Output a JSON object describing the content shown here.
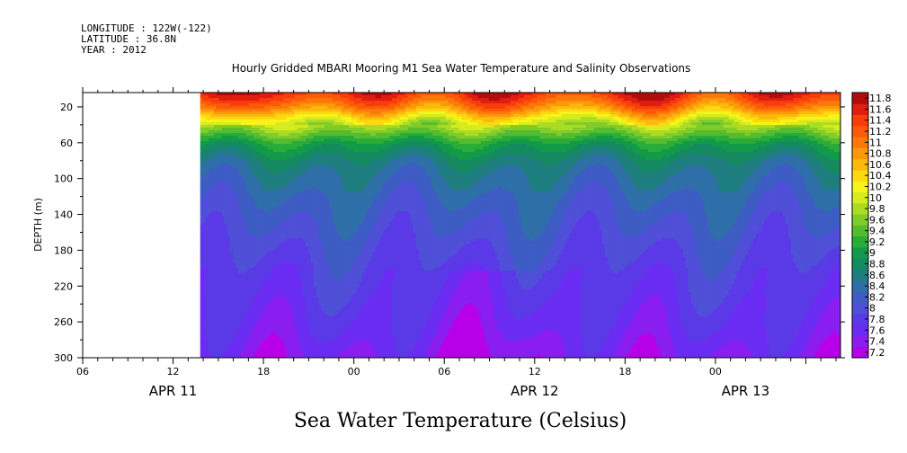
{
  "header": {
    "longitude": "LONGITUDE : 122W(-122)",
    "latitude": "LATITUDE : 36.8N",
    "year": "YEAR : 2012",
    "title": "Hourly Gridded MBARI Mooring M1 Sea Water Temperature and Salinity Observations"
  },
  "footer": {
    "variable_label": "Sea Water Temperature (Celsius)"
  },
  "chart_data": {
    "type": "heatmap",
    "title": "Hourly Gridded MBARI Mooring M1 Sea Water Temperature and Salinity Observations",
    "ylabel": "DEPTH (m)",
    "xlabel": "",
    "xlim_hours": [
      0,
      50.3
    ],
    "ylim": [
      300,
      0
    ],
    "data_start_hour": 7.8,
    "y_ticks": [
      20,
      60,
      100,
      140,
      180,
      220,
      260,
      300
    ],
    "x_tick_labels": [
      {
        "hour": 0,
        "label": "06"
      },
      {
        "hour": 6,
        "label": "12"
      },
      {
        "hour": 12,
        "label": "18"
      },
      {
        "hour": 18,
        "label": "00"
      },
      {
        "hour": 24,
        "label": "06"
      },
      {
        "hour": 30,
        "label": "12"
      },
      {
        "hour": 36,
        "label": "18"
      },
      {
        "hour": 42,
        "label": "00"
      }
    ],
    "date_labels": [
      {
        "hour": 6,
        "label": "APR 11"
      },
      {
        "hour": 30,
        "label": "APR 12"
      },
      {
        "hour": 44,
        "label": "APR 13"
      }
    ],
    "colorbar_levels": [
      7.2,
      7.4,
      7.6,
      7.8,
      8,
      8.2,
      8.4,
      8.6,
      8.8,
      9,
      9.2,
      9.4,
      9.6,
      9.8,
      10,
      10.2,
      10.4,
      10.6,
      10.8,
      11,
      11.2,
      11.4,
      11.6,
      11.8
    ],
    "colorbar_labels": [
      "7.2",
      "7.4",
      "7.6",
      "7.8",
      "8",
      "8.2",
      "8.4",
      "8.6",
      "8.8",
      "9",
      "9.2",
      "9.4",
      "9.6",
      "9.8",
      "10",
      "10.2",
      "10.4",
      "10.6",
      "10.8",
      "11",
      "11.2",
      "11.4",
      "11.6",
      "11.8"
    ],
    "colors": [
      "#b800e8",
      "#8a1ef0",
      "#6a2cf2",
      "#5a3ae6",
      "#4f4fd8",
      "#3d5cc4",
      "#2f6fa8",
      "#1e7d7e",
      "#158a60",
      "#129a48",
      "#2aac38",
      "#55bc30",
      "#80cc2a",
      "#aadc24",
      "#d6ec1e",
      "#f6f41a",
      "#fcd810",
      "#fcb80c",
      "#fc980a",
      "#fc7808",
      "#fc5a08",
      "#f83c0c",
      "#e01e10",
      "#b00e0e"
    ],
    "profile": {
      "depths": [
        4,
        10,
        20,
        30,
        40,
        50,
        60,
        70,
        80,
        90,
        100,
        110,
        120,
        140,
        160,
        180,
        200,
        220,
        240,
        260,
        280,
        300
      ],
      "values": [
        11.6,
        11.4,
        11.0,
        10.4,
        9.9,
        9.5,
        9.1,
        8.9,
        8.7,
        8.6,
        8.5,
        8.45,
        8.35,
        8.25,
        8.15,
        8.05,
        7.95,
        7.9,
        7.82,
        7.75,
        7.65,
        7.55
      ]
    }
  }
}
